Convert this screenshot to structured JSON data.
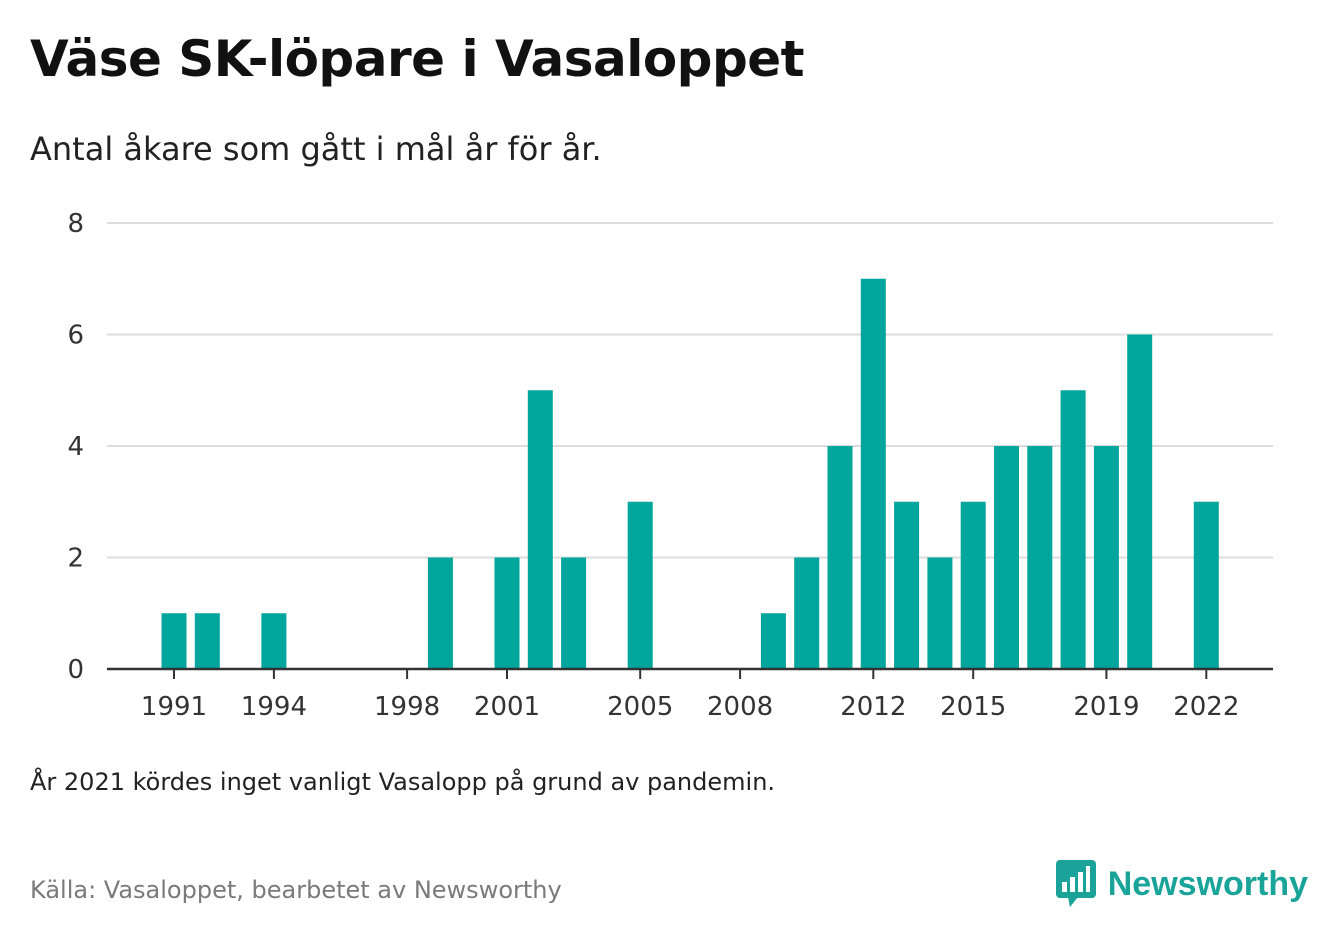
{
  "header": {
    "title": "Väse SK-löpare i Vasaloppet",
    "subtitle": "Antal åkare som gått i mål år för år."
  },
  "footer": {
    "note": "År 2021 kördes inget vanligt Vasalopp på grund av pandemin.",
    "source": "Källa: Vasaloppet, bearbetet av Newsworthy",
    "brand": "Newsworthy",
    "brand_icon": "newsworthy-logo-icon"
  },
  "colors": {
    "bar": "#00a69b",
    "grid": "#dddddd",
    "axis": "#333333",
    "brand": "#1aa398"
  },
  "chart_data": {
    "type": "bar",
    "categories": [
      1991,
      1992,
      1993,
      1994,
      1995,
      1996,
      1997,
      1998,
      1999,
      2000,
      2001,
      2002,
      2003,
      2004,
      2005,
      2006,
      2007,
      2008,
      2009,
      2010,
      2011,
      2012,
      2013,
      2014,
      2015,
      2016,
      2017,
      2018,
      2019,
      2020,
      2021,
      2022
    ],
    "values": [
      1,
      1,
      0,
      1,
      0,
      0,
      0,
      0,
      2,
      0,
      2,
      5,
      2,
      0,
      3,
      0,
      0,
      0,
      1,
      2,
      4,
      7,
      3,
      2,
      3,
      4,
      4,
      5,
      4,
      6,
      null,
      3
    ],
    "x_tick_labels": [
      "1991",
      "1994",
      "1998",
      "2001",
      "2005",
      "2008",
      "2012",
      "2015",
      "2019",
      "2022"
    ],
    "y_ticks": [
      0,
      2,
      4,
      6,
      8
    ],
    "ylim": [
      0,
      8
    ],
    "grid": true,
    "legend": false
  }
}
